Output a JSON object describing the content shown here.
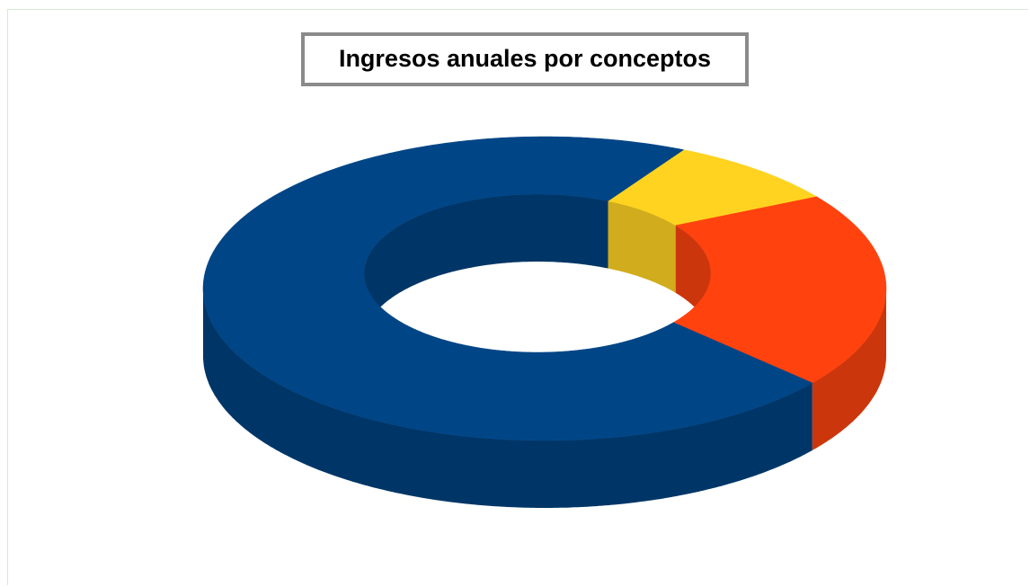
{
  "chart_data": {
    "type": "donut3d",
    "title": "Ingresos anuales por conceptos",
    "values": [
      8,
      21,
      71
    ],
    "colors": [
      "#ffd320",
      "#ff420e",
      "#004586"
    ],
    "side_colors": [
      "#d1ac1c",
      "#cc360c",
      "#003667"
    ]
  }
}
